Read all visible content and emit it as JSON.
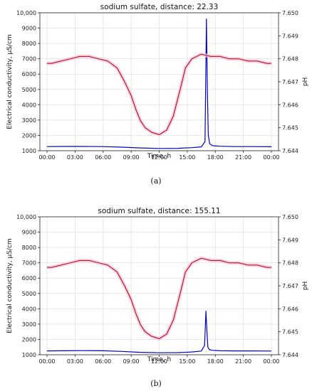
{
  "colors": {
    "conductivity": "#0000cc",
    "ph": "#b30000",
    "ph_shadow": "#f3c6e2",
    "grid": "#d9d9d9"
  },
  "chart_data": [
    {
      "type": "line",
      "caption": "(a)",
      "title": "sodium sulfate, distance: 22.33",
      "xlabel": "Time, h",
      "ylabel_left": "Electrical conductivity, μS/cm",
      "ylabel_right": "pH",
      "x_ticks": [
        "00:00",
        "03:00",
        "06:00",
        "09:00",
        "12:00",
        "15:00",
        "18:00",
        "21:00",
        "00:00"
      ],
      "y_left_ticks": [
        "1000",
        "2000",
        "3000",
        "4000",
        "5000",
        "6000",
        "7000",
        "8000",
        "9000",
        "10,000"
      ],
      "y_right_ticks": [
        "7.644",
        "7.645",
        "7.646",
        "7.647",
        "7.648",
        "7.649",
        "7.650"
      ],
      "grid": true,
      "xlim": [
        0,
        24
      ],
      "ylim_left": [
        1000,
        10000
      ],
      "ylim_right": [
        7.644,
        7.65
      ],
      "series": [
        {
          "axis": "left",
          "color": "#0000cc",
          "x": [
            0,
            2,
            4,
            6,
            8,
            10,
            12,
            14,
            15.5,
            16.5,
            16.9,
            17.05,
            17.15,
            17.25,
            17.4,
            17.7,
            18.5,
            20,
            22,
            24
          ],
          "y": [
            1270,
            1280,
            1280,
            1270,
            1230,
            1180,
            1150,
            1160,
            1200,
            1250,
            1600,
            9600,
            5000,
            2000,
            1450,
            1330,
            1290,
            1270,
            1270,
            1260
          ]
        },
        {
          "axis": "right",
          "color": "#b30000",
          "x": [
            0,
            0.5,
            1.5,
            2.5,
            3.5,
            4.5,
            5.5,
            6.5,
            7.5,
            8.3,
            9.0,
            9.5,
            10.0,
            10.5,
            11.2,
            12.0,
            12.8,
            13.5,
            14.2,
            14.8,
            15.5,
            16.5,
            17.5,
            18.5,
            19.5,
            20.5,
            21.5,
            22.5,
            23.5,
            24
          ],
          "y": [
            7.6478,
            7.6478,
            7.6479,
            7.648,
            7.6481,
            7.6481,
            7.648,
            7.6479,
            7.6476,
            7.647,
            7.6464,
            7.6458,
            7.6453,
            7.645,
            7.6448,
            7.6447,
            7.6449,
            7.6455,
            7.6466,
            7.6476,
            7.648,
            7.6482,
            7.6481,
            7.6481,
            7.648,
            7.648,
            7.6479,
            7.6479,
            7.6478,
            7.6478
          ]
        }
      ]
    },
    {
      "type": "line",
      "caption": "(b)",
      "title": "sodium sulfate, distance: 155.11",
      "xlabel": "Time, h",
      "ylabel_left": "Electrical conductivity, μS/cm",
      "ylabel_right": "pH",
      "x_ticks": [
        "00:00",
        "03:00",
        "06:00",
        "09:00",
        "12:00",
        "15:00",
        "18:00",
        "21:00",
        "00:00"
      ],
      "y_left_ticks": [
        "1000",
        "2000",
        "3000",
        "4000",
        "5000",
        "6000",
        "7000",
        "8000",
        "9000",
        "10,000"
      ],
      "y_right_ticks": [
        "7.644",
        "7.645",
        "7.646",
        "7.647",
        "7.648",
        "7.649",
        "7.650"
      ],
      "grid": true,
      "xlim": [
        0,
        24
      ],
      "ylim_left": [
        1000,
        10000
      ],
      "ylim_right": [
        7.644,
        7.65
      ],
      "series": [
        {
          "axis": "left",
          "color": "#0000cc",
          "x": [
            0,
            2,
            4,
            6,
            8,
            10,
            12,
            14,
            15.5,
            16.5,
            16.85,
            17.0,
            17.1,
            17.2,
            17.35,
            17.6,
            18.5,
            20,
            22,
            24
          ],
          "y": [
            1250,
            1260,
            1270,
            1260,
            1220,
            1160,
            1130,
            1140,
            1180,
            1240,
            1600,
            3850,
            2600,
            1500,
            1350,
            1290,
            1260,
            1250,
            1250,
            1240
          ]
        },
        {
          "axis": "right",
          "color": "#b30000",
          "x": [
            0,
            0.5,
            1.5,
            2.5,
            3.5,
            4.5,
            5.5,
            6.5,
            7.5,
            8.3,
            9.0,
            9.5,
            10.0,
            10.5,
            11.2,
            12.0,
            12.8,
            13.5,
            14.2,
            14.8,
            15.5,
            16.5,
            17.5,
            18.5,
            19.5,
            20.5,
            21.5,
            22.5,
            23.5,
            24
          ],
          "y": [
            7.6478,
            7.6478,
            7.6479,
            7.648,
            7.6481,
            7.6481,
            7.648,
            7.6479,
            7.6476,
            7.647,
            7.6464,
            7.6458,
            7.6453,
            7.645,
            7.6448,
            7.6447,
            7.6449,
            7.6455,
            7.6466,
            7.6476,
            7.648,
            7.6482,
            7.6481,
            7.6481,
            7.648,
            7.648,
            7.6479,
            7.6479,
            7.6478,
            7.6478
          ]
        }
      ]
    }
  ]
}
